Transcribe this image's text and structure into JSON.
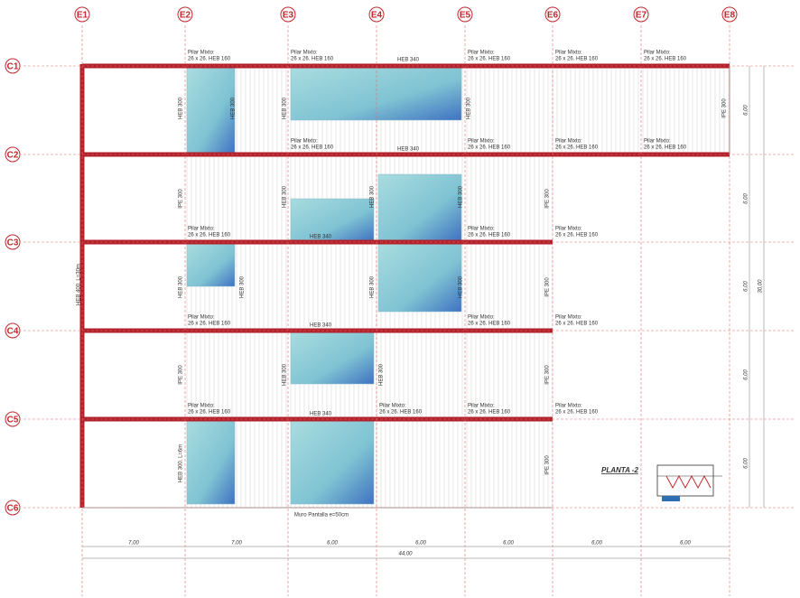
{
  "columns": [
    "E1",
    "E2",
    "E3",
    "E4",
    "E5",
    "E6",
    "E7",
    "E8"
  ],
  "rows": [
    "C1",
    "C2",
    "C3",
    "C4",
    "C5",
    "C6"
  ],
  "pillar_labels": [
    {
      "name": "Pilar Mixto:",
      "section": "26 x 26. HEB 160"
    },
    {
      "name": "Pilar Mixto:",
      "section": "26 x 26. HEB 160"
    },
    {
      "name": "Pilar Mixto:",
      "section": "26 x 26. HEB 160"
    },
    {
      "name": "Pilar Mixto:",
      "section": "26 x 26. HEB 160"
    },
    {
      "name": "Pilar Mixto:",
      "section": "26 x 26. HEB 160"
    },
    {
      "name": "Pilar Mixto:",
      "section": "26 x 26. HEB 160"
    },
    {
      "name": "Pilar Mixto:",
      "section": "26 x 26. HEB 160"
    },
    {
      "name": "Pilar Mixto:",
      "section": "26 x 26. HEB 160"
    },
    {
      "name": "Pilar Mixto:",
      "section": "26 x 26. HEB 160"
    },
    {
      "name": "Pilar Mixto:",
      "section": "26 x 26. HEB 160"
    },
    {
      "name": "Pilar Mixto:",
      "section": "26 x 26. HEB 160"
    },
    {
      "name": "Pilar Mixto:",
      "section": "26 x 26. HEB 160"
    },
    {
      "name": "Pilar Mixto:",
      "section": "26 x 26. HEB 160"
    },
    {
      "name": "Pilar Mixto:",
      "section": "26 x 26. HEB 160"
    },
    {
      "name": "Pilar Mixto:",
      "section": "26 x 26. HEB 160"
    },
    {
      "name": "Pilar Mixto:",
      "section": "26 x 26. HEB 160"
    },
    {
      "name": "Pilar Mixto:",
      "section": "26 x 26. HEB 160"
    },
    {
      "name": "Pilar Mixto:",
      "section": "26 x 26. HEB 160"
    },
    {
      "name": "Pilar Mixto:",
      "section": "26 x 26. HEB 160"
    }
  ],
  "beam_labels": [
    "HEB 340",
    "HEB 340",
    "HEB 340",
    "HEB 340",
    "HEB 340"
  ],
  "member_labels": [
    "HEB 300",
    "HEB 300",
    "HEB 300",
    "HEB 300",
    "IPE 300",
    "IPE 300",
    "HEB 300",
    "HEB 300",
    "HEB 300",
    "IPE 300",
    "HEB 300",
    "HEB 300",
    "HEB 300",
    "HEB 300",
    "IPE 300",
    "IPE 300",
    "HEB 300",
    "HEB 300",
    "IPE 300",
    "HEB 300. L=6m",
    "IPE 300",
    "HEB 400. L=30m"
  ],
  "wall_label": "Muro Pantalla e=50cm",
  "dimensions": {
    "bays": [
      "7,00",
      "7,00",
      "6,00",
      "6,00",
      "6,00",
      "6,00",
      "6,00"
    ],
    "total": "44,00",
    "spans": [
      "6,00",
      "6,00",
      "6,00",
      "6,00",
      "6,00"
    ],
    "total_height": "30,00"
  },
  "plan_title": "PLANTA -2"
}
